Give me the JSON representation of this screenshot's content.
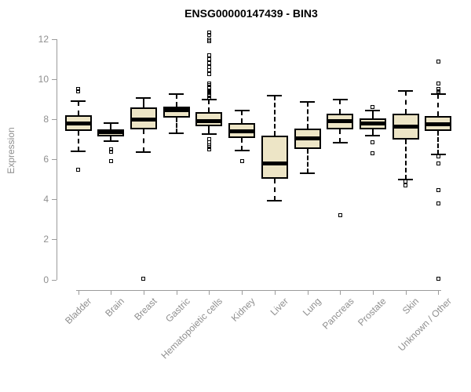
{
  "chart_data": {
    "type": "boxplot",
    "title": "ENSG00000147439 - BIN3",
    "xlabel": "",
    "ylabel": "Expression",
    "ylim": [
      0,
      12
    ],
    "yticks": [
      0,
      2,
      4,
      6,
      8,
      10,
      12
    ],
    "grid": false,
    "legend": "none",
    "categories": [
      "Bladder",
      "Brain",
      "Breast",
      "Gastric",
      "Hematopoietic cells",
      "Kidney",
      "Liver",
      "Lung",
      "Pancreas",
      "Prostate",
      "Skin",
      "Unknown / Other"
    ],
    "boxes": [
      {
        "category": "Bladder",
        "whisker_low": 6.4,
        "q1": 7.4,
        "median": 7.8,
        "q3": 8.2,
        "whisker_high": 8.9,
        "outliers": [
          5.5,
          9.4,
          9.5
        ]
      },
      {
        "category": "Brain",
        "whisker_low": 6.9,
        "q1": 7.15,
        "median": 7.35,
        "q3": 7.5,
        "whisker_high": 7.8,
        "outliers": [
          5.9,
          6.4,
          6.5
        ]
      },
      {
        "category": "Breast",
        "whisker_low": 6.35,
        "q1": 7.5,
        "median": 8.0,
        "q3": 8.6,
        "whisker_high": 9.05,
        "outliers": [
          0.05
        ]
      },
      {
        "category": "Gastric",
        "whisker_low": 7.3,
        "q1": 8.1,
        "median": 8.45,
        "q3": 8.65,
        "whisker_high": 9.25,
        "outliers": []
      },
      {
        "category": "Hematopoietic cells",
        "whisker_low": 7.25,
        "q1": 7.65,
        "median": 7.9,
        "q3": 8.35,
        "whisker_high": 9.0,
        "outliers": [
          6.5,
          6.6,
          6.7,
          6.85,
          7.0,
          9.05,
          9.1,
          9.15,
          9.2,
          9.3,
          9.35,
          9.4,
          9.45,
          9.55,
          9.6,
          9.7,
          9.8,
          10.25,
          10.45,
          10.6,
          10.8,
          11.0,
          11.2,
          11.9,
          12.0,
          12.2,
          12.35
        ]
      },
      {
        "category": "Kidney",
        "whisker_low": 6.45,
        "q1": 7.05,
        "median": 7.4,
        "q3": 7.8,
        "whisker_high": 8.45,
        "outliers": [
          5.9
        ]
      },
      {
        "category": "Liver",
        "whisker_low": 3.95,
        "q1": 5.05,
        "median": 5.8,
        "q3": 7.2,
        "whisker_high": 9.2,
        "outliers": []
      },
      {
        "category": "Lung",
        "whisker_low": 5.3,
        "q1": 6.5,
        "median": 7.05,
        "q3": 7.55,
        "whisker_high": 8.85,
        "outliers": []
      },
      {
        "category": "Pancreas",
        "whisker_low": 6.85,
        "q1": 7.5,
        "median": 7.9,
        "q3": 8.3,
        "whisker_high": 9.0,
        "outliers": [
          3.2
        ]
      },
      {
        "category": "Prostate",
        "whisker_low": 7.2,
        "q1": 7.5,
        "median": 7.8,
        "q3": 8.05,
        "whisker_high": 8.45,
        "outliers": [
          6.3,
          6.85,
          8.6
        ]
      },
      {
        "category": "Skin",
        "whisker_low": 5.0,
        "q1": 7.0,
        "median": 7.65,
        "q3": 8.3,
        "whisker_high": 9.4,
        "outliers": [
          4.7,
          4.9
        ]
      },
      {
        "category": "Unknown / Other",
        "whisker_low": 6.25,
        "q1": 7.4,
        "median": 7.75,
        "q3": 8.15,
        "whisker_high": 9.25,
        "outliers": [
          0.05,
          3.8,
          4.45,
          5.8,
          6.15,
          9.3,
          9.4,
          9.5,
          9.8,
          10.9
        ]
      }
    ]
  },
  "colors": {
    "box_fill": "#ede5c6",
    "box_border": "#000000",
    "median": "#000000",
    "axis": "#9b9b9b",
    "tick_label": "#8f8f8f",
    "title": "#000000",
    "background": "#ffffff"
  }
}
